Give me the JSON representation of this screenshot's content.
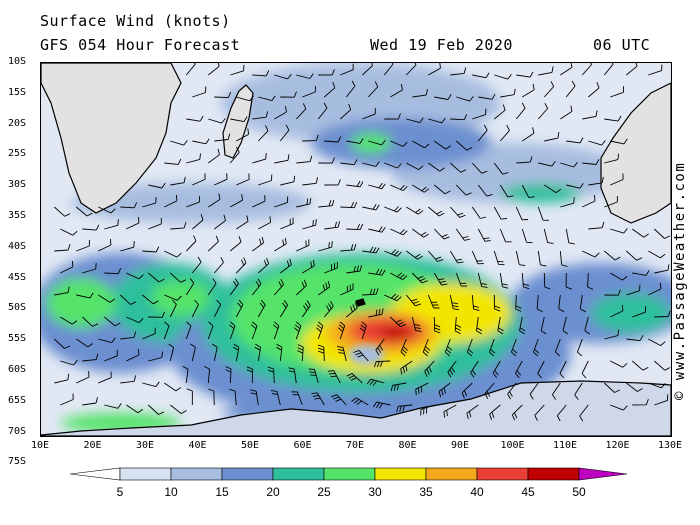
{
  "header": {
    "title": "Surface Wind (knots)",
    "model": "GFS 054 Hour Forecast",
    "date": "Wed 19 Feb 2020",
    "time": "06 UTC"
  },
  "credit": "© www.PassageWeather.com",
  "axes": {
    "latitudes": [
      "10S",
      "15S",
      "20S",
      "25S",
      "30S",
      "35S",
      "40S",
      "45S",
      "50S",
      "55S",
      "60S",
      "65S",
      "70S",
      "75S"
    ],
    "longitudes": [
      "10E",
      "20E",
      "30E",
      "40E",
      "50E",
      "60E",
      "70E",
      "80E",
      "90E",
      "100E",
      "110E",
      "120E",
      "130E"
    ]
  },
  "legend": {
    "labels": [
      "5",
      "10",
      "15",
      "20",
      "25",
      "30",
      "35",
      "40",
      "45",
      "50"
    ],
    "colors": [
      "#ffffff",
      "#d8e3f2",
      "#a7bde0",
      "#6c8fd0",
      "#2fbf9c",
      "#55e36a",
      "#f2e600",
      "#f4a81d",
      "#ea3f34",
      "#c00000",
      "#c000c0"
    ]
  },
  "map_colors": {
    "land": "#e2e2e2",
    "coast": "#000000",
    "barb": "#000000"
  }
}
